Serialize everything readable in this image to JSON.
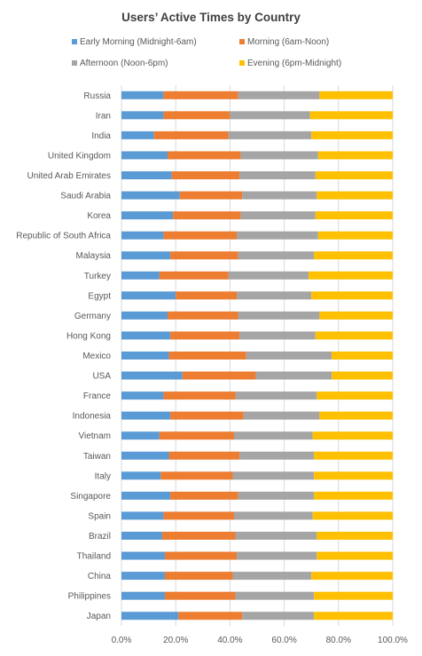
{
  "chart_data": {
    "type": "bar",
    "orientation": "horizontal",
    "stacked": "percent",
    "title": "Users’ Active Times by Country",
    "legend_position": "top",
    "grid": true,
    "xlim": [
      0,
      100
    ],
    "x_ticks": [
      "0.0%",
      "20.0%",
      "40.0%",
      "60.0%",
      "80.0%",
      "100.0%"
    ],
    "categories": [
      "Russia",
      "Iran",
      "India",
      "United Kingdom",
      "United Arab Emirates",
      "Saudi Arabia",
      "Korea",
      "Republic of South Africa",
      "Malaysia",
      "Turkey",
      "Egypt",
      "Germany",
      "Hong Kong",
      "Mexico",
      "USA",
      "France",
      "Indonesia",
      "Vietnam",
      "Taiwan",
      "Italy",
      "Singapore",
      "Spain",
      "Brazil",
      "Thailand",
      "China",
      "Philippines",
      "Japan"
    ],
    "series": [
      {
        "name": "Early Morning (Midnight-6am)",
        "color": "#5B9BD5",
        "values": [
          15.5,
          15.5,
          12,
          17,
          18.5,
          21.5,
          19,
          15.5,
          18,
          14,
          20,
          17,
          18,
          17.5,
          22.5,
          15.5,
          18,
          14,
          17.5,
          14.5,
          18,
          15.5,
          15,
          16,
          16,
          16,
          21
        ]
      },
      {
        "name": "Morning (6am-Noon)",
        "color": "#ED7D31",
        "values": [
          27.5,
          24.5,
          27.5,
          27,
          25,
          23,
          25,
          27,
          25,
          25.5,
          22.5,
          26,
          25.5,
          28.5,
          27,
          26.5,
          27,
          27.5,
          26,
          26.5,
          25,
          26,
          27,
          26.5,
          25,
          26,
          23.5
        ]
      },
      {
        "name": "Afternoon (Noon-6pm)",
        "color": "#A5A5A5",
        "values": [
          30,
          29.5,
          30.5,
          28.5,
          28,
          27.5,
          27.5,
          30,
          28,
          29.5,
          27.5,
          30,
          28,
          31.5,
          28,
          30,
          28,
          29,
          27.5,
          30,
          28,
          29,
          30,
          29.5,
          29,
          29,
          26.5
        ]
      },
      {
        "name": "Evening (6pm-Midnight)",
        "color": "#FFC000",
        "values": [
          27,
          30.5,
          30,
          27.5,
          28.5,
          28,
          28.5,
          27.5,
          29,
          31,
          30,
          27,
          28.5,
          22.5,
          22.5,
          28,
          27,
          29.5,
          29,
          29,
          29,
          29.5,
          28,
          28,
          30,
          29,
          29
        ]
      }
    ]
  }
}
